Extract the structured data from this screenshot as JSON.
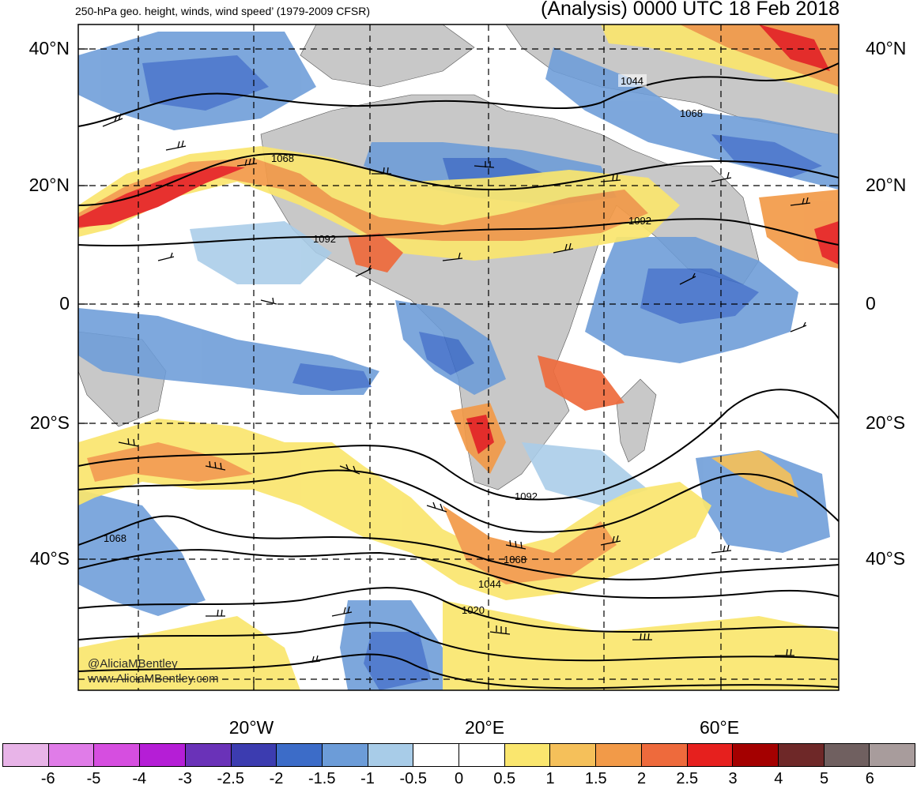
{
  "title_left": "250-hPa geo. height, winds, wind speed’ (1979-2009 CFSR)",
  "title_right": "(Analysis) 0000 UTC 18 Feb 2018",
  "lat_labels": [
    "40°N",
    "20°N",
    "0",
    "20°S",
    "40°S"
  ],
  "lon_labels": [
    "20°W",
    "20°E",
    "60°E"
  ],
  "height_contour_labels": [
    "1044",
    "1068",
    "1068",
    "1092",
    "1092",
    "1092",
    "1068",
    "1068",
    "1044",
    "1020"
  ],
  "credit": {
    "handle": "@AliciaMBentley",
    "website": "www.AliciaMBentley.com"
  },
  "colorbar": {
    "labels": [
      "-6",
      "-5",
      "-4",
      "-3",
      "-2.5",
      "-2",
      "-1.5",
      "-1",
      "-0.5",
      "0",
      "0.5",
      "1",
      "1.5",
      "2",
      "2.5",
      "3",
      "4",
      "5",
      "6"
    ],
    "colors": [
      "#e8b4e8",
      "#e07ce8",
      "#d64ee0",
      "#b51ed6",
      "#6a32b8",
      "#3c3cb0",
      "#3c6cc8",
      "#6c9cd8",
      "#a8cce8",
      "#ffffff",
      "#ffffff",
      "#fae66e",
      "#f5c05a",
      "#f29a48",
      "#ee6a3c",
      "#e6201e",
      "#a40000",
      "#6e2828",
      "#706060",
      "#a89c9c"
    ]
  },
  "colors": {
    "land": "#c8c8c8",
    "ocean": "#ffffff",
    "negative_anomaly": "#6c9cd8",
    "positive_anomaly": "#f29a48"
  }
}
